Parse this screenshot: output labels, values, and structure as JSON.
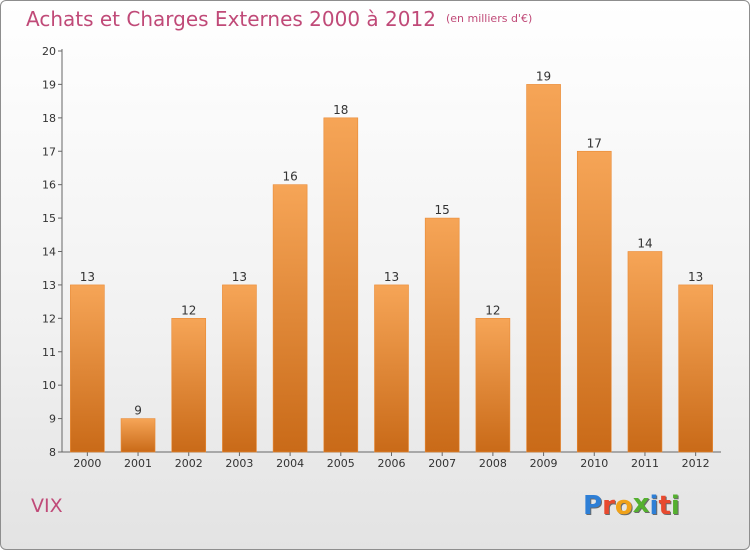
{
  "header": {
    "title": "Achats et Charges Externes 2000 à 2012",
    "subtitle": "(en milliers d'€)"
  },
  "footer": {
    "commune": "VIX",
    "logo_letters": [
      {
        "ch": "P",
        "color": "#2e7fd6"
      },
      {
        "ch": "r",
        "color": "#e84a2f"
      },
      {
        "ch": "o",
        "color": "#f0a21a"
      },
      {
        "ch": "x",
        "color": "#55b030"
      },
      {
        "ch": "i",
        "color": "#2e7fd6"
      },
      {
        "ch": "t",
        "color": "#e84a2f"
      },
      {
        "ch": "i",
        "color": "#55b030"
      }
    ]
  },
  "chart_data": {
    "type": "bar",
    "title": "Achats et Charges Externes 2000 à 2012",
    "subtitle": "(en milliers d'€)",
    "categories": [
      "2000",
      "2001",
      "2002",
      "2003",
      "2004",
      "2005",
      "2006",
      "2007",
      "2008",
      "2009",
      "2010",
      "2011",
      "2012"
    ],
    "values": [
      13,
      9,
      12,
      13,
      16,
      18,
      13,
      15,
      12,
      19,
      17,
      14,
      13
    ],
    "data_labels": [
      "13",
      "9",
      "12",
      "13",
      "16",
      "18",
      "13",
      "15",
      "12",
      "19",
      "17",
      "14",
      "13"
    ],
    "ylim": [
      8,
      20
    ],
    "yticks": [
      8,
      9,
      10,
      11,
      12,
      13,
      14,
      15,
      16,
      17,
      18,
      19,
      20
    ],
    "grid": false,
    "bar_color_top": "#f6a557",
    "bar_color_bottom": "#c96a18",
    "label_color": "#333333"
  }
}
